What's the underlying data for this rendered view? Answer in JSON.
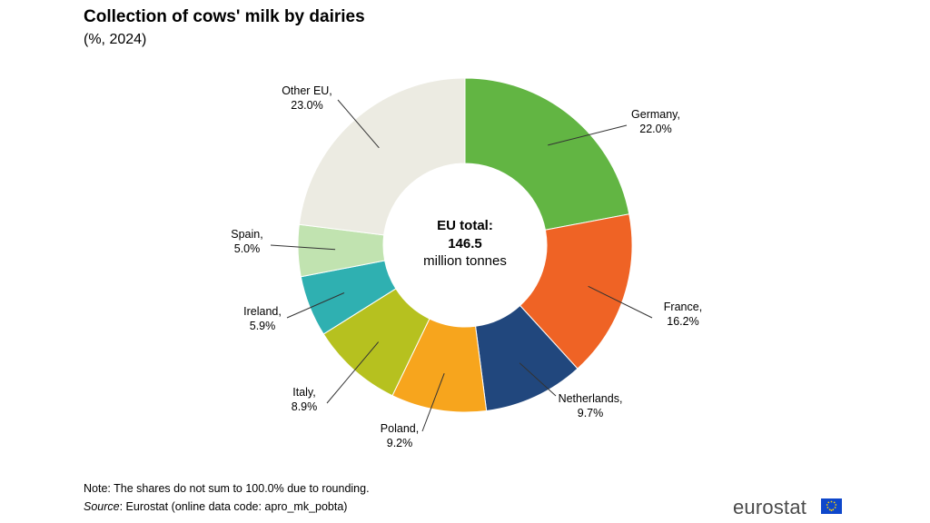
{
  "title": "Collection of cows' milk by dairies",
  "subtitle": "(%, 2024)",
  "center": {
    "line1": "EU total:",
    "line2": "146.5",
    "line3": "million tonnes"
  },
  "note": "Note: The shares do not sum to 100.0% due to rounding.",
  "source_label": "Source",
  "source_text": ": Eurostat (online data code: apro_mk_pobta)",
  "brand": "eurostat",
  "chart_data": {
    "type": "pie",
    "variant": "donut",
    "unit": "%",
    "categories": [
      "Germany",
      "France",
      "Netherlands",
      "Poland",
      "Italy",
      "Ireland",
      "Spain",
      "Other EU"
    ],
    "values": [
      22.0,
      16.2,
      9.7,
      9.2,
      8.9,
      5.9,
      5.0,
      23.0
    ],
    "labels": [
      "22.0%",
      "16.2%",
      "9.7%",
      "9.2%",
      "8.9%",
      "5.9%",
      "5.0%",
      "23.0%"
    ],
    "colors": [
      "#62b543",
      "#ef6325",
      "#21477d",
      "#f7a51d",
      "#b6c11f",
      "#2fb0b1",
      "#c1e3b0",
      "#ecebe2"
    ],
    "legend": "none"
  }
}
